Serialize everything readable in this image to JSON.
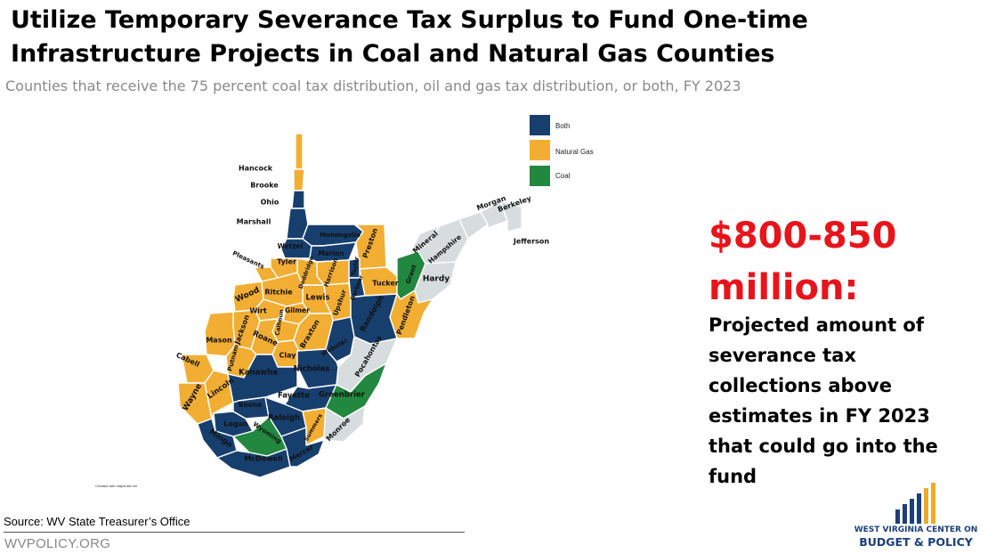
{
  "title": "Utilize Temporary Severance Tax Surplus to Fund One-time Infrastructure Projects in Coal and Natural Gas Counties",
  "subtitle": "Counties that receive the 75 percent coal tax distribution, oil and gas tax distribution, or both, FY 2023",
  "colors": {
    "both": "#173f6e",
    "natural_gas": "#f2ae33",
    "coal": "#22883f",
    "none": "#d7dcde",
    "highlight": "#e8141b",
    "logo_blue": "#1b3f7a",
    "logo_gold": "#e9ac2a"
  },
  "legend": [
    {
      "label": "Both",
      "category": "both"
    },
    {
      "label": "Natural Gas",
      "category": "natural_gas"
    },
    {
      "label": "Coal",
      "category": "coal"
    }
  ],
  "counties": [
    {
      "name": "Hancock",
      "category": "natural_gas"
    },
    {
      "name": "Brooke",
      "category": "natural_gas"
    },
    {
      "name": "Ohio",
      "category": "both"
    },
    {
      "name": "Marshall",
      "category": "both"
    },
    {
      "name": "Wetzel",
      "category": "both"
    },
    {
      "name": "Monongalia",
      "category": "both"
    },
    {
      "name": "Marion",
      "category": "both"
    },
    {
      "name": "Preston",
      "category": "natural_gas"
    },
    {
      "name": "Taylor",
      "category": "both"
    },
    {
      "name": "Harrison",
      "category": "natural_gas"
    },
    {
      "name": "Barbour",
      "category": "both"
    },
    {
      "name": "Tucker",
      "category": "natural_gas"
    },
    {
      "name": "Grant",
      "category": "coal"
    },
    {
      "name": "Mineral",
      "category": "none"
    },
    {
      "name": "Hampshire",
      "category": "none"
    },
    {
      "name": "Hardy",
      "category": "none"
    },
    {
      "name": "Morgan",
      "category": "none"
    },
    {
      "name": "Berkeley",
      "category": "none"
    },
    {
      "name": "Jefferson",
      "category": "none"
    },
    {
      "name": "Pendleton",
      "category": "natural_gas"
    },
    {
      "name": "Randolph",
      "category": "both"
    },
    {
      "name": "Upshur",
      "category": "natural_gas"
    },
    {
      "name": "Lewis",
      "category": "natural_gas"
    },
    {
      "name": "Doddridge",
      "category": "natural_gas"
    },
    {
      "name": "Tyler",
      "category": "natural_gas"
    },
    {
      "name": "Pleasants",
      "category": "natural_gas"
    },
    {
      "name": "Ritchie",
      "category": "natural_gas"
    },
    {
      "name": "Wood",
      "category": "natural_gas"
    },
    {
      "name": "Wirt",
      "category": "natural_gas"
    },
    {
      "name": "Gilmer",
      "category": "natural_gas"
    },
    {
      "name": "Calhoun",
      "category": "natural_gas"
    },
    {
      "name": "Jackson",
      "category": "natural_gas"
    },
    {
      "name": "Roane",
      "category": "natural_gas"
    },
    {
      "name": "Braxton",
      "category": "natural_gas"
    },
    {
      "name": "Webster",
      "category": "both"
    },
    {
      "name": "Pocahontas",
      "category": "none"
    },
    {
      "name": "Mason",
      "category": "natural_gas"
    },
    {
      "name": "Putnam",
      "category": "natural_gas"
    },
    {
      "name": "Clay",
      "category": "natural_gas"
    },
    {
      "name": "Nicholas",
      "category": "both"
    },
    {
      "name": "Cabell",
      "category": "natural_gas"
    },
    {
      "name": "Wayne",
      "category": "natural_gas"
    },
    {
      "name": "Lincoln",
      "category": "natural_gas"
    },
    {
      "name": "Kanawha",
      "category": "both"
    },
    {
      "name": "Fayette",
      "category": "both"
    },
    {
      "name": "Greenbrier",
      "category": "coal"
    },
    {
      "name": "Boone",
      "category": "both"
    },
    {
      "name": "Logan",
      "category": "both"
    },
    {
      "name": "Raleigh",
      "category": "both"
    },
    {
      "name": "Mingo",
      "category": "both"
    },
    {
      "name": "Wyoming",
      "category": "coal"
    },
    {
      "name": "Summers",
      "category": "natural_gas"
    },
    {
      "name": "Monroe",
      "category": "none"
    },
    {
      "name": "McDowell",
      "category": "both"
    },
    {
      "name": "Mercer",
      "category": "both"
    }
  ],
  "credit": "Created with mapchart.net",
  "highlight": {
    "amount": "$800-850 million:",
    "description": "Projected amount of severance tax collections above estimates in FY 2023 that could go into the fund"
  },
  "source": "Source: WV State Treasurer’s Office",
  "footer_url": "WVPOLICY.ORG",
  "logo": {
    "line1": "WEST VIRGINIA CENTER ON",
    "line2": "BUDGET & POLICY"
  }
}
